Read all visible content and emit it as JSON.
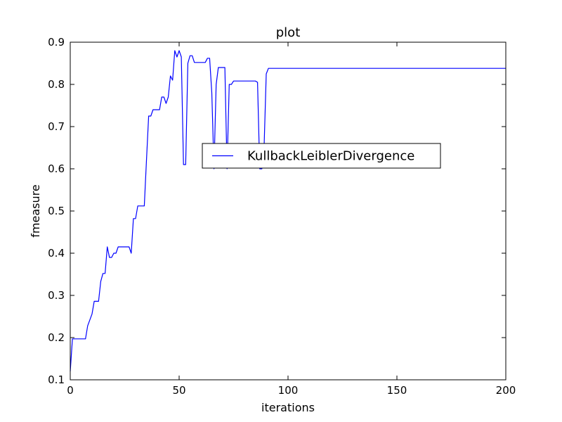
{
  "chart_data": {
    "type": "line",
    "title": "plot",
    "xlabel": "iterations",
    "ylabel": "fmeasure",
    "xlim": [
      0,
      200
    ],
    "ylim": [
      0.1,
      0.9
    ],
    "xticks": [
      0,
      50,
      100,
      150,
      200
    ],
    "xtick_labels": [
      "0",
      "50",
      "100",
      "150",
      "200"
    ],
    "yticks": [
      0.1,
      0.2,
      0.3,
      0.4,
      0.5,
      0.6,
      0.7,
      0.8,
      0.9
    ],
    "ytick_labels": [
      "0.1",
      "0.2",
      "0.3",
      "0.4",
      "0.5",
      "0.6",
      "0.7",
      "0.8",
      "0.9"
    ],
    "grid": false,
    "legend_position": "center-right",
    "series": [
      {
        "name": "KullbackLeiblerDivergence",
        "color": "#0000ff",
        "x": [
          0,
          1,
          2,
          3,
          4,
          5,
          6,
          7,
          8,
          9,
          10,
          11,
          12,
          13,
          14,
          15,
          16,
          17,
          18,
          19,
          20,
          21,
          22,
          23,
          24,
          25,
          26,
          27,
          28,
          29,
          30,
          31,
          32,
          33,
          34,
          35,
          36,
          37,
          38,
          39,
          40,
          41,
          42,
          43,
          44,
          45,
          46,
          47,
          48,
          49,
          50,
          51,
          52,
          53,
          54,
          55,
          56,
          57,
          58,
          59,
          60,
          61,
          62,
          63,
          64,
          65,
          66,
          67,
          68,
          69,
          70,
          71,
          72,
          73,
          74,
          75,
          76,
          77,
          78,
          79,
          80,
          81,
          82,
          83,
          84,
          85,
          86,
          87,
          88,
          89,
          90,
          91,
          92,
          200
        ],
        "y": [
          0.12,
          0.197,
          0.197,
          0.197,
          0.197,
          0.197,
          0.197,
          0.197,
          0.228,
          0.242,
          0.256,
          0.286,
          0.286,
          0.286,
          0.333,
          0.352,
          0.352,
          0.415,
          0.39,
          0.39,
          0.4,
          0.4,
          0.415,
          0.415,
          0.415,
          0.415,
          0.415,
          0.415,
          0.4,
          0.482,
          0.482,
          0.512,
          0.512,
          0.512,
          0.512,
          0.62,
          0.725,
          0.725,
          0.74,
          0.74,
          0.74,
          0.74,
          0.77,
          0.77,
          0.755,
          0.77,
          0.82,
          0.81,
          0.88,
          0.865,
          0.88,
          0.865,
          0.61,
          0.61,
          0.85,
          0.868,
          0.868,
          0.852,
          0.852,
          0.852,
          0.852,
          0.852,
          0.852,
          0.862,
          0.862,
          0.78,
          0.6,
          0.8,
          0.84,
          0.84,
          0.84,
          0.84,
          0.6,
          0.8,
          0.8,
          0.808,
          0.808,
          0.808,
          0.808,
          0.808,
          0.808,
          0.808,
          0.808,
          0.808,
          0.808,
          0.808,
          0.805,
          0.6,
          0.6,
          0.65,
          0.825,
          0.838,
          0.838,
          0.838
        ]
      }
    ]
  }
}
